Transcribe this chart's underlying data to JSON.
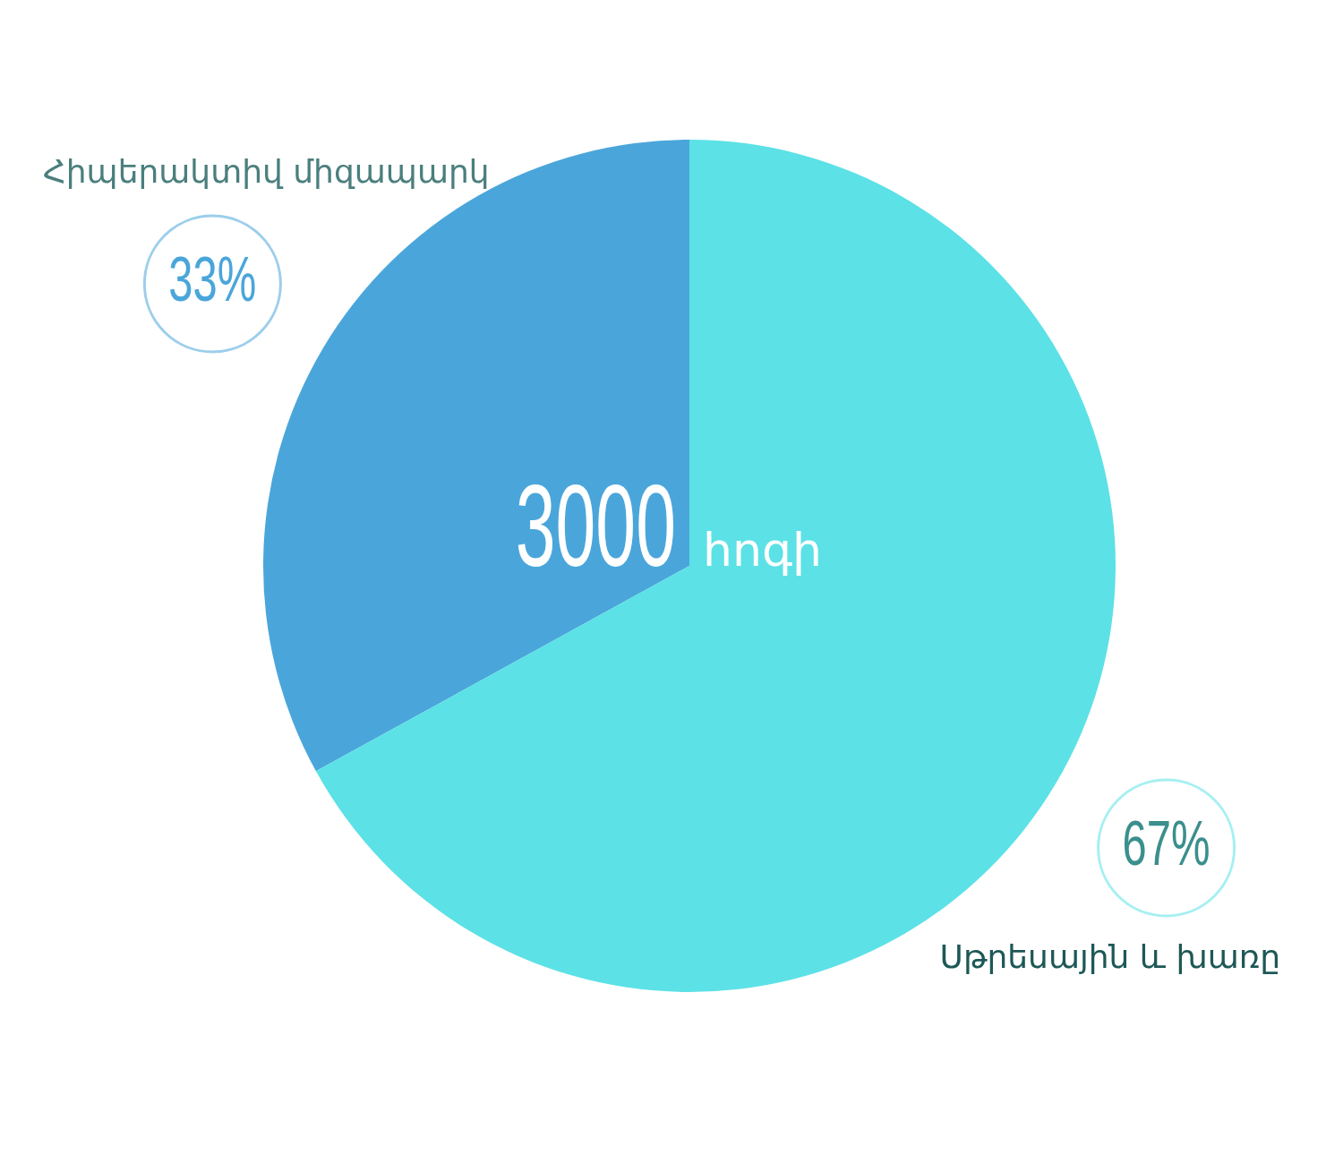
{
  "chart_data": {
    "type": "pie",
    "categories": [
      "Հիպերակտիվ միզապարկ",
      "Սթրեսային և խառը"
    ],
    "values": [
      33,
      67
    ],
    "colors": [
      "#4aa6da",
      "#5ce1e6"
    ],
    "value_labels": [
      "33%",
      "67%"
    ],
    "annotations": [
      "3000 հոգի"
    ]
  }
}
